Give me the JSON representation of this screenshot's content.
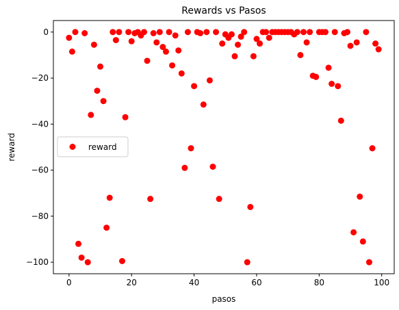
{
  "chart_data": {
    "type": "scatter",
    "title": "Rewards vs Pasos",
    "xlabel": "pasos",
    "ylabel": "reward",
    "xlim": [
      -5,
      104
    ],
    "ylim": [
      -105,
      5
    ],
    "xticks": [
      0,
      20,
      40,
      60,
      80,
      100
    ],
    "yticks": [
      0,
      -20,
      -40,
      -60,
      -80,
      -100
    ],
    "grid": false,
    "legend_position": "center-left",
    "series": [
      {
        "name": "reward",
        "color": "#ff0000",
        "marker": "circle",
        "x": [
          0,
          1,
          2,
          3,
          4,
          5,
          6,
          7,
          8,
          9,
          10,
          11,
          12,
          13,
          14,
          15,
          16,
          17,
          18,
          19,
          20,
          21,
          22,
          23,
          24,
          25,
          26,
          27,
          28,
          29,
          30,
          31,
          32,
          33,
          34,
          35,
          36,
          37,
          38,
          39,
          40,
          41,
          42,
          43,
          44,
          45,
          46,
          47,
          48,
          49,
          50,
          51,
          52,
          53,
          54,
          55,
          56,
          57,
          58,
          59,
          60,
          61,
          62,
          63,
          64,
          65,
          66,
          67,
          68,
          69,
          70,
          71,
          72,
          73,
          74,
          75,
          76,
          77,
          78,
          79,
          80,
          81,
          82,
          83,
          84,
          85,
          86,
          87,
          88,
          89,
          90,
          91,
          92,
          93,
          94,
          95,
          96,
          97,
          98,
          99
        ],
        "y": [
          -2.5,
          -8.5,
          0,
          -92,
          -98,
          -0.5,
          -100,
          -36,
          -5.5,
          -25.5,
          -15,
          -30,
          -85,
          -72,
          0,
          -3.5,
          0,
          -99.5,
          -37,
          0,
          -4,
          -0.5,
          0,
          -1.5,
          0,
          -12.5,
          -72.5,
          -0.5,
          -4.5,
          0,
          -6.5,
          -8.5,
          0,
          -14.5,
          -1.5,
          -8,
          -18,
          -59,
          0,
          -50.5,
          -23.5,
          0,
          -0.5,
          -31.5,
          0,
          -21,
          -58.5,
          0,
          -72.5,
          -5,
          -1,
          -2.5,
          -1,
          -10.5,
          -5.5,
          -2,
          0,
          -100,
          -76,
          -10.5,
          -3,
          -5,
          0,
          0,
          -2.5,
          0,
          0,
          0,
          0,
          0,
          0,
          0,
          -1,
          0,
          -10,
          0,
          -4.5,
          0,
          -19,
          -19.5,
          0,
          0,
          0,
          -15.5,
          -22.5,
          0,
          -23.5,
          -38.5,
          -0.5,
          0,
          -6,
          -87,
          -4.5,
          -71.5,
          -91,
          0,
          -100,
          -50.5,
          -5,
          -7.5
        ]
      }
    ]
  }
}
